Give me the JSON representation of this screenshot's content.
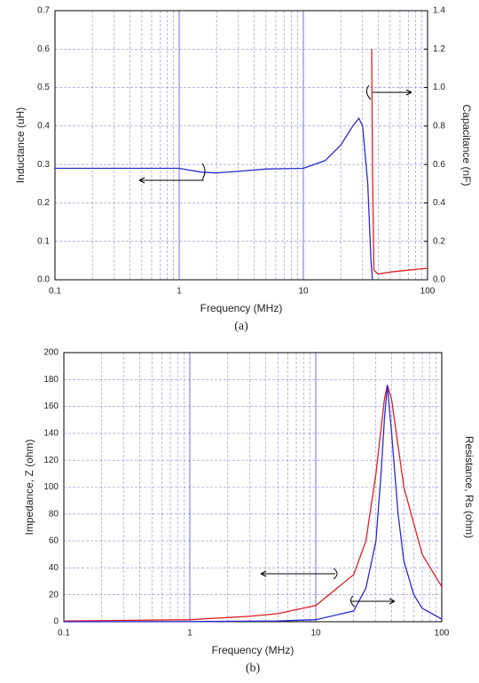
{
  "chart_data": [
    {
      "type": "line",
      "caption": "(a)",
      "xlabel": "Frequency (MHz)",
      "ylabel": "Inductance (uH)",
      "y2label": "Capacitance (nF)",
      "xscale": "log",
      "xlim": [
        0.1,
        100
      ],
      "xticks": [
        0.1,
        1,
        10,
        100
      ],
      "ylim": [
        0,
        0.7
      ],
      "yticks": [
        {
          "value": 0,
          "label": "0.0"
        },
        0.1,
        0.2,
        0.3,
        0.4,
        0.5,
        0.6,
        0.7
      ],
      "y2lim": [
        0,
        1.4
      ],
      "y2ticks": [
        {
          "value": 0,
          "label": "0.0"
        },
        0.2,
        0.4,
        0.6,
        0.8,
        {
          "value": 1,
          "label": "1.0"
        },
        1.2,
        1.4
      ],
      "grid": true,
      "series": [
        {
          "color": "#2b2bd0",
          "axis": "y",
          "x": [
            0.1,
            0.2,
            0.5,
            1,
            1.5,
            2,
            3,
            5,
            10,
            15,
            20,
            25,
            28,
            30,
            33,
            35,
            36
          ],
          "values": [
            0.29,
            0.29,
            0.29,
            0.29,
            0.28,
            0.278,
            0.282,
            0.288,
            0.29,
            0.31,
            0.35,
            0.4,
            0.42,
            0.4,
            0.25,
            0.05,
            0.0
          ]
        },
        {
          "color": "#e02020",
          "axis": "y2",
          "x": [
            35.5,
            36,
            37,
            40,
            50,
            70,
            100
          ],
          "values": [
            1.2,
            0.6,
            0.05,
            0.03,
            0.04,
            0.05,
            0.06
          ]
        }
      ]
    },
    {
      "type": "line",
      "caption": "(b)",
      "xlabel": "Frequency (MHz)",
      "ylabel": "Impedance, Z (ohm)",
      "y2label": "Resistance, Rs (ohm)",
      "xscale": "log",
      "xlim": [
        0.1,
        100
      ],
      "xticks": [
        0.1,
        1,
        10,
        100
      ],
      "ylim": [
        0,
        200
      ],
      "yticks": [
        0,
        20,
        40,
        60,
        80,
        100,
        120,
        140,
        160,
        180,
        200
      ],
      "grid": true,
      "series": [
        {
          "color": "#e02020",
          "axis": "y",
          "x": [
            0.1,
            1,
            3,
            5,
            10,
            20,
            25,
            30,
            35,
            37,
            40,
            50,
            70,
            100
          ],
          "values": [
            0.5,
            1.5,
            4,
            6,
            12,
            35,
            60,
            110,
            165,
            176,
            165,
            100,
            50,
            26
          ]
        },
        {
          "color": "#2b2bd0",
          "axis": "y",
          "x": [
            0.1,
            1,
            5,
            10,
            20,
            25,
            30,
            33,
            35,
            37,
            40,
            45,
            50,
            60,
            70,
            100
          ],
          "values": [
            0,
            0.1,
            0.5,
            1.5,
            8,
            25,
            60,
            110,
            150,
            176,
            140,
            80,
            45,
            20,
            10,
            2
          ]
        }
      ]
    }
  ]
}
